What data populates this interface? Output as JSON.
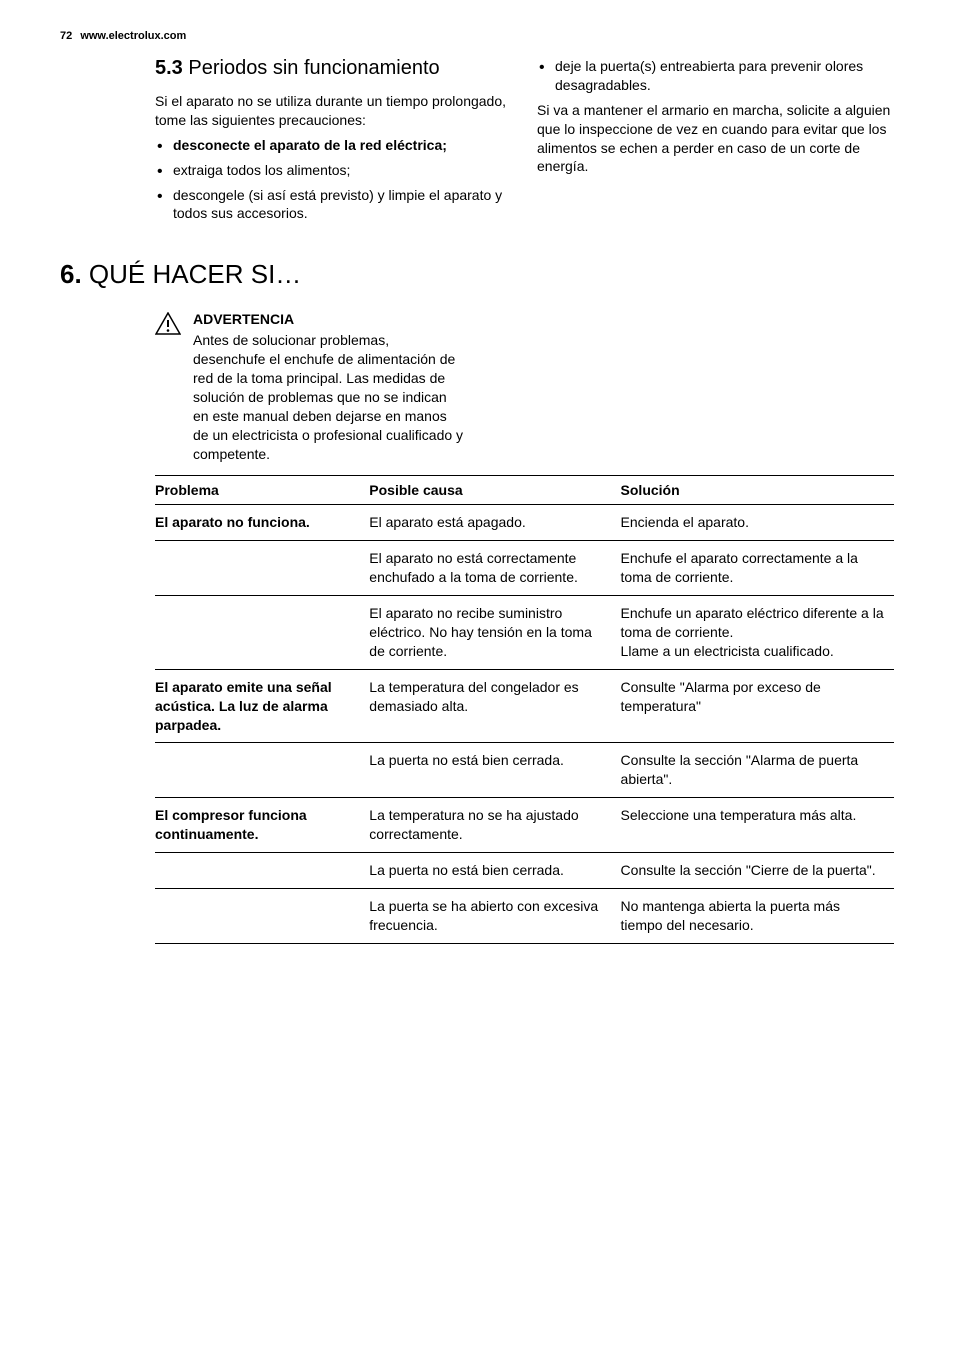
{
  "header": {
    "page_number": "72",
    "url": "www.electrolux.com"
  },
  "section53": {
    "number": "5.3",
    "title": "Periodos sin funcionamiento",
    "intro": "Si el aparato no se utiliza durante un tiempo prolongado, tome las siguientes precauciones:",
    "bullets_left": [
      {
        "text": "desconecte el aparato de la red eléctrica;",
        "bold": true
      },
      {
        "text": "extraiga todos los alimentos;",
        "bold": false
      },
      {
        "text": "descongele (si así está previsto) y limpie el aparato y todos sus accesorios.",
        "bold": false
      }
    ],
    "bullets_right": [
      {
        "text": "deje la puerta(s) entreabierta para prevenir olores desagradables."
      }
    ],
    "right_para": "Si va a mantener el armario en marcha, solicite a alguien que lo inspeccione de vez en cuando para evitar que los alimentos se echen a perder en caso de un corte de energía."
  },
  "section6": {
    "number": "6.",
    "title": "QUÉ HACER SI…",
    "warning": {
      "title": "ADVERTENCIA",
      "body": "Antes de solucionar problemas, desenchufe el enchufe de alimentación de red de la toma principal. Las medidas de solución de problemas que no se indican en este manual deben dejarse en manos de un electricista o profesional cualificado y competente."
    },
    "table": {
      "headers": [
        "Problema",
        "Posible causa",
        "Solución"
      ],
      "rows": [
        {
          "problem": "El aparato no funciona.",
          "cause": "El aparato está apagado.",
          "solution": "Encienda el aparato."
        },
        {
          "problem": "",
          "cause": "El aparato no está correctamente enchufado a la toma de corriente.",
          "solution": "Enchufe el aparato correctamente a la toma de corriente."
        },
        {
          "problem": "",
          "cause": "El aparato no recibe suministro eléctrico. No hay tensión en la toma de corriente.",
          "solution": "Enchufe un aparato eléctrico diferente a la toma de corriente.\nLlame a un electricista cualificado."
        },
        {
          "problem": "El aparato emite una señal acústica. La luz de alarma parpadea.",
          "cause": "La temperatura del congelador es demasiado alta.",
          "solution": "Consulte \"Alarma por exceso de temperatura\""
        },
        {
          "problem": "",
          "cause": "La puerta no está bien cerrada.",
          "solution": "Consulte la sección \"Alarma de puerta abierta\"."
        },
        {
          "problem": "El compresor funciona continuamente.",
          "cause": "La temperatura no se ha ajustado correctamente.",
          "solution": "Seleccione una temperatura más alta."
        },
        {
          "problem": "",
          "cause": "La puerta no está bien cerrada.",
          "solution": "Consulte la sección \"Cierre de la puerta\"."
        },
        {
          "problem": "",
          "cause": "La puerta se ha abierto con excesiva frecuencia.",
          "solution": "No mantenga abierta la puerta más tiempo del necesario."
        }
      ]
    }
  },
  "colors": {
    "text": "#000000",
    "background": "#ffffff",
    "border": "#000000"
  }
}
